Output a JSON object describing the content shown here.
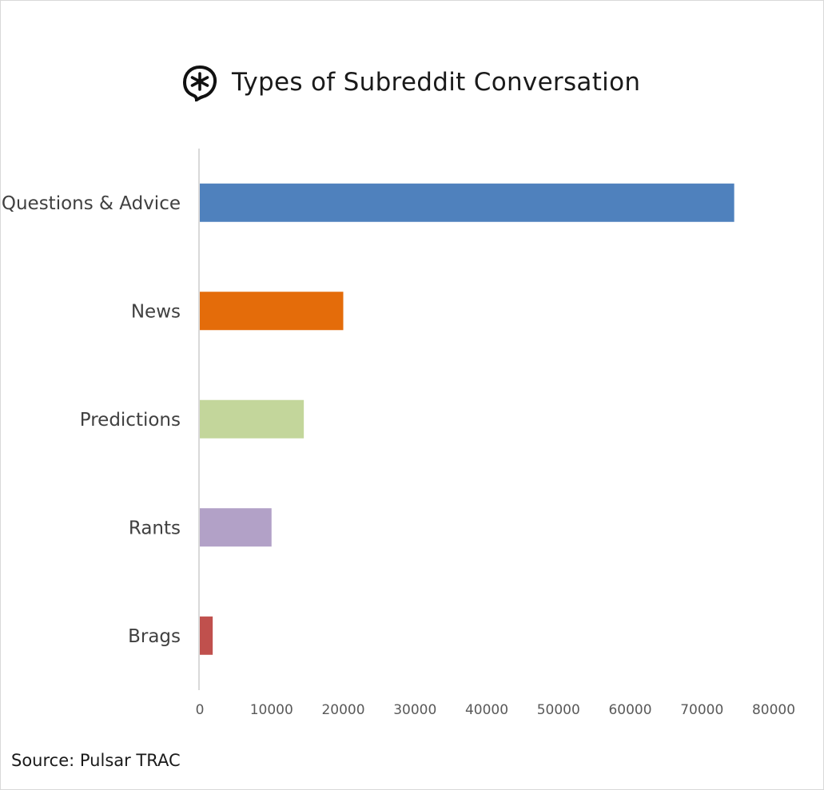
{
  "chart_data": {
    "type": "bar",
    "orientation": "horizontal",
    "title": "Types of Subreddit Conversation",
    "categories": [
      "Questions & Advice",
      "News",
      "Predictions",
      "Rants",
      "Brags"
    ],
    "values": [
      74500,
      20000,
      14500,
      10000,
      1800
    ],
    "colors": [
      "#4f81bd",
      "#e46c0a",
      "#c3d69b",
      "#b2a1c7",
      "#c0504d"
    ],
    "xlabel": "",
    "ylabel": "",
    "xlim": [
      0,
      80000
    ],
    "xticks": [
      "0",
      "10000",
      "20000",
      "30000",
      "40000",
      "50000",
      "60000",
      "70000",
      "80000"
    ],
    "grid": false,
    "legend": "none"
  },
  "logo": {
    "icon": "pulsar-asterisk-logo-icon"
  },
  "source": "Source: Pulsar TRAC"
}
